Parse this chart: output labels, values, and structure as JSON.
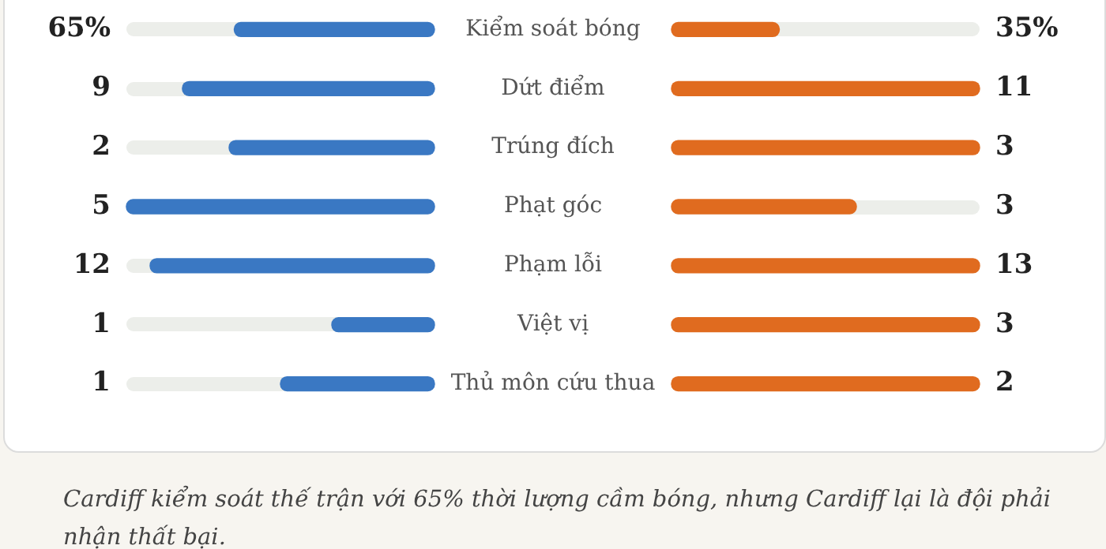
{
  "chart_data": {
    "type": "other",
    "categories": [
      "Kiểm soát bóng",
      "Dứt điểm",
      "Trúng đích",
      "Phạt góc",
      "Phạm lỗi",
      "Việt vị",
      "Thủ môn cứu thua"
    ],
    "series": [
      {
        "color": "#3a78c3",
        "values": [
          65,
          9,
          2,
          5,
          12,
          1,
          1
        ],
        "value_labels": [
          "65%",
          "9",
          "2",
          "5",
          "12",
          "1",
          "1"
        ]
      },
      {
        "color": "#e06b1f",
        "values": [
          35,
          11,
          3,
          3,
          13,
          3,
          2
        ],
        "value_labels": [
          "35%",
          "11",
          "3",
          "3",
          "13",
          "3",
          "2"
        ]
      }
    ],
    "annotations": [
      "Cardiff kiểm soát thế trận với 65% thời lượng cầm bóng, nhưng Cardiff lại là đội phải nhận thất bại."
    ]
  }
}
